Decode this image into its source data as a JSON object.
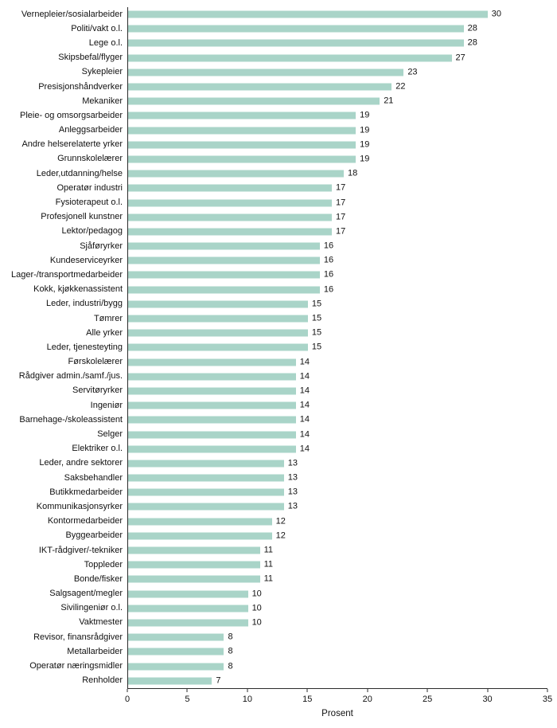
{
  "chart_data": {
    "type": "bar",
    "orientation": "horizontal",
    "title": "",
    "xlabel": "Prosent",
    "ylabel": "",
    "xlim": [
      0,
      35
    ],
    "xticks": [
      0,
      5,
      10,
      15,
      20,
      25,
      30,
      35
    ],
    "grid": false,
    "legend": false,
    "bar_color": "#a9d4c8",
    "axis_color": "#2b2b2b",
    "categories": [
      "Vernepleier/sosialarbeider",
      "Politi/vakt o.l.",
      "Lege o.l.",
      "Skipsbefal/flyger",
      "Sykepleier",
      "Presisjonshåndverker",
      "Mekaniker",
      "Pleie- og omsorgsarbeider",
      "Anleggsarbeider",
      "Andre helserelaterte yrker",
      "Grunnskolelærer",
      "Leder,utdanning/helse",
      "Operatør industri",
      "Fysioterapeut o.l.",
      "Profesjonell kunstner",
      "Lektor/pedagog",
      "Sjåføryrker",
      "Kundeserviceyrker",
      "Lager-/transportmedarbeider",
      "Kokk, kjøkkenassistent",
      "Leder, industri/bygg",
      "Tømrer",
      "Alle yrker",
      "Leder, tjenesteyting",
      "Førskolelærer",
      "Rådgiver admin./samf./jus.",
      "Servitøryrker",
      "Ingeniør",
      "Barnehage-/skoleassistent",
      "Selger",
      "Elektriker o.l.",
      "Leder, andre sektorer",
      "Saksbehandler",
      "Butikkmedarbeider",
      "Kommunikasjonsyrker",
      "Kontormedarbeider",
      "Byggearbeider",
      "IKT-rådgiver/-tekniker",
      "Toppleder",
      "Bonde/fisker",
      "Salgsagent/megler",
      "Sivilingeniør o.l.",
      "Vaktmester",
      "Revisor, finansrådgiver",
      "Metallarbeider",
      "Operatør næringsmidler",
      "Renholder"
    ],
    "values": [
      30,
      28,
      28,
      27,
      23,
      22,
      21,
      19,
      19,
      19,
      19,
      18,
      17,
      17,
      17,
      17,
      16,
      16,
      16,
      16,
      15,
      15,
      15,
      15,
      14,
      14,
      14,
      14,
      14,
      14,
      14,
      13,
      13,
      13,
      13,
      12,
      12,
      11,
      11,
      11,
      10,
      10,
      10,
      8,
      8,
      8,
      7
    ]
  }
}
